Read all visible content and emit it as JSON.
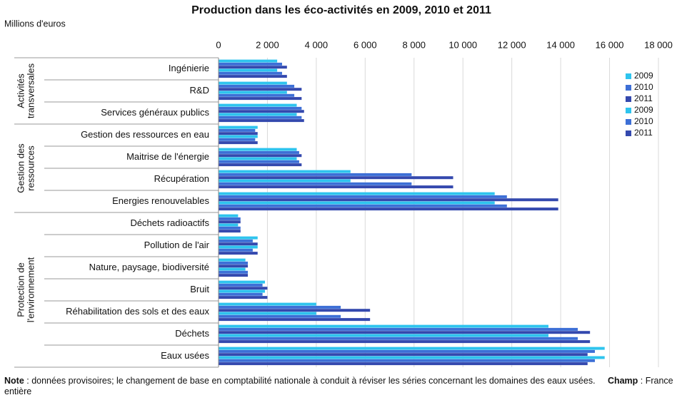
{
  "chart_data": {
    "type": "barh",
    "title": "Production dans les éco-activités en 2009, 2010 et 2011",
    "unit_label": "Millions d'euros",
    "categories": [
      "Ingénierie",
      "R&D",
      "Services généraux publics",
      "Gestion des ressources en eau",
      "Maitrise de l'énergie",
      "Récupération",
      "Energies renouvelables",
      "Déchets radioactifs",
      "Pollution de l'air",
      "Nature, paysage, biodiversité",
      "Bruit",
      "Réhabilitation des sols et des eaux",
      "Déchets",
      "Eaux usées"
    ],
    "groups": [
      {
        "label_lines": [
          "Activités",
          "transversales"
        ],
        "size": 3
      },
      {
        "label_lines": [
          "Gestion des",
          "ressources"
        ],
        "size": 4
      },
      {
        "label_lines": [
          "Protection de",
          "l'environnement"
        ],
        "size": 7
      }
    ],
    "series": [
      {
        "name": "2009",
        "color": "#2ec4ee",
        "values": [
          2400,
          2800,
          3200,
          1600,
          3200,
          5400,
          11300,
          800,
          1600,
          1100,
          1900,
          4000,
          13500,
          15800
        ]
      },
      {
        "name": "2010",
        "color": "#3d6fd6",
        "values": [
          2600,
          3100,
          3400,
          1500,
          3300,
          7900,
          11800,
          900,
          1400,
          1200,
          1800,
          5000,
          14700,
          15400
        ]
      },
      {
        "name": "2011",
        "color": "#3449ae",
        "values": [
          2800,
          3400,
          3500,
          1600,
          3400,
          9600,
          13900,
          900,
          1600,
          1200,
          2000,
          6200,
          15200,
          15100
        ]
      },
      {
        "name": "2009",
        "color": "#2ec4ee",
        "values": [
          2400,
          2800,
          3200,
          1600,
          3200,
          5400,
          11300,
          800,
          1600,
          1100,
          1900,
          4000,
          13500,
          15800
        ]
      },
      {
        "name": "2010",
        "color": "#3d6fd6",
        "values": [
          2600,
          3100,
          3400,
          1500,
          3300,
          7900,
          11800,
          900,
          1400,
          1200,
          1800,
          5000,
          14700,
          15400
        ]
      },
      {
        "name": "2011",
        "color": "#3449ae",
        "values": [
          2800,
          3400,
          3500,
          1600,
          3400,
          9600,
          13900,
          900,
          1600,
          1200,
          2000,
          6200,
          15200,
          15100
        ]
      }
    ],
    "xlim": [
      0,
      18000
    ],
    "xticks": [
      0,
      {
        "value": 2000,
        "label": "2 000"
      },
      {
        "value": 4000,
        "label": "4 000"
      },
      {
        "value": 6000,
        "label": "6 000"
      },
      {
        "value": 8000,
        "label": "8 000"
      },
      {
        "value": 10000,
        "label": "10 000"
      },
      {
        "value": 12000,
        "label": "12 000"
      },
      {
        "value": 14000,
        "label": "14 000"
      },
      {
        "value": 16000,
        "label": "16 000"
      },
      {
        "value": 18000,
        "label": "18 000"
      }
    ],
    "grid": true,
    "legend": "right",
    "note": {
      "label": "Note",
      "text": " : données provisoires; le changement de base en comptabilité nationale à conduit à réviser les séries concernant les domaines des eaux usées.",
      "champ_label": "Champ",
      "champ_text": " : France entière"
    }
  }
}
